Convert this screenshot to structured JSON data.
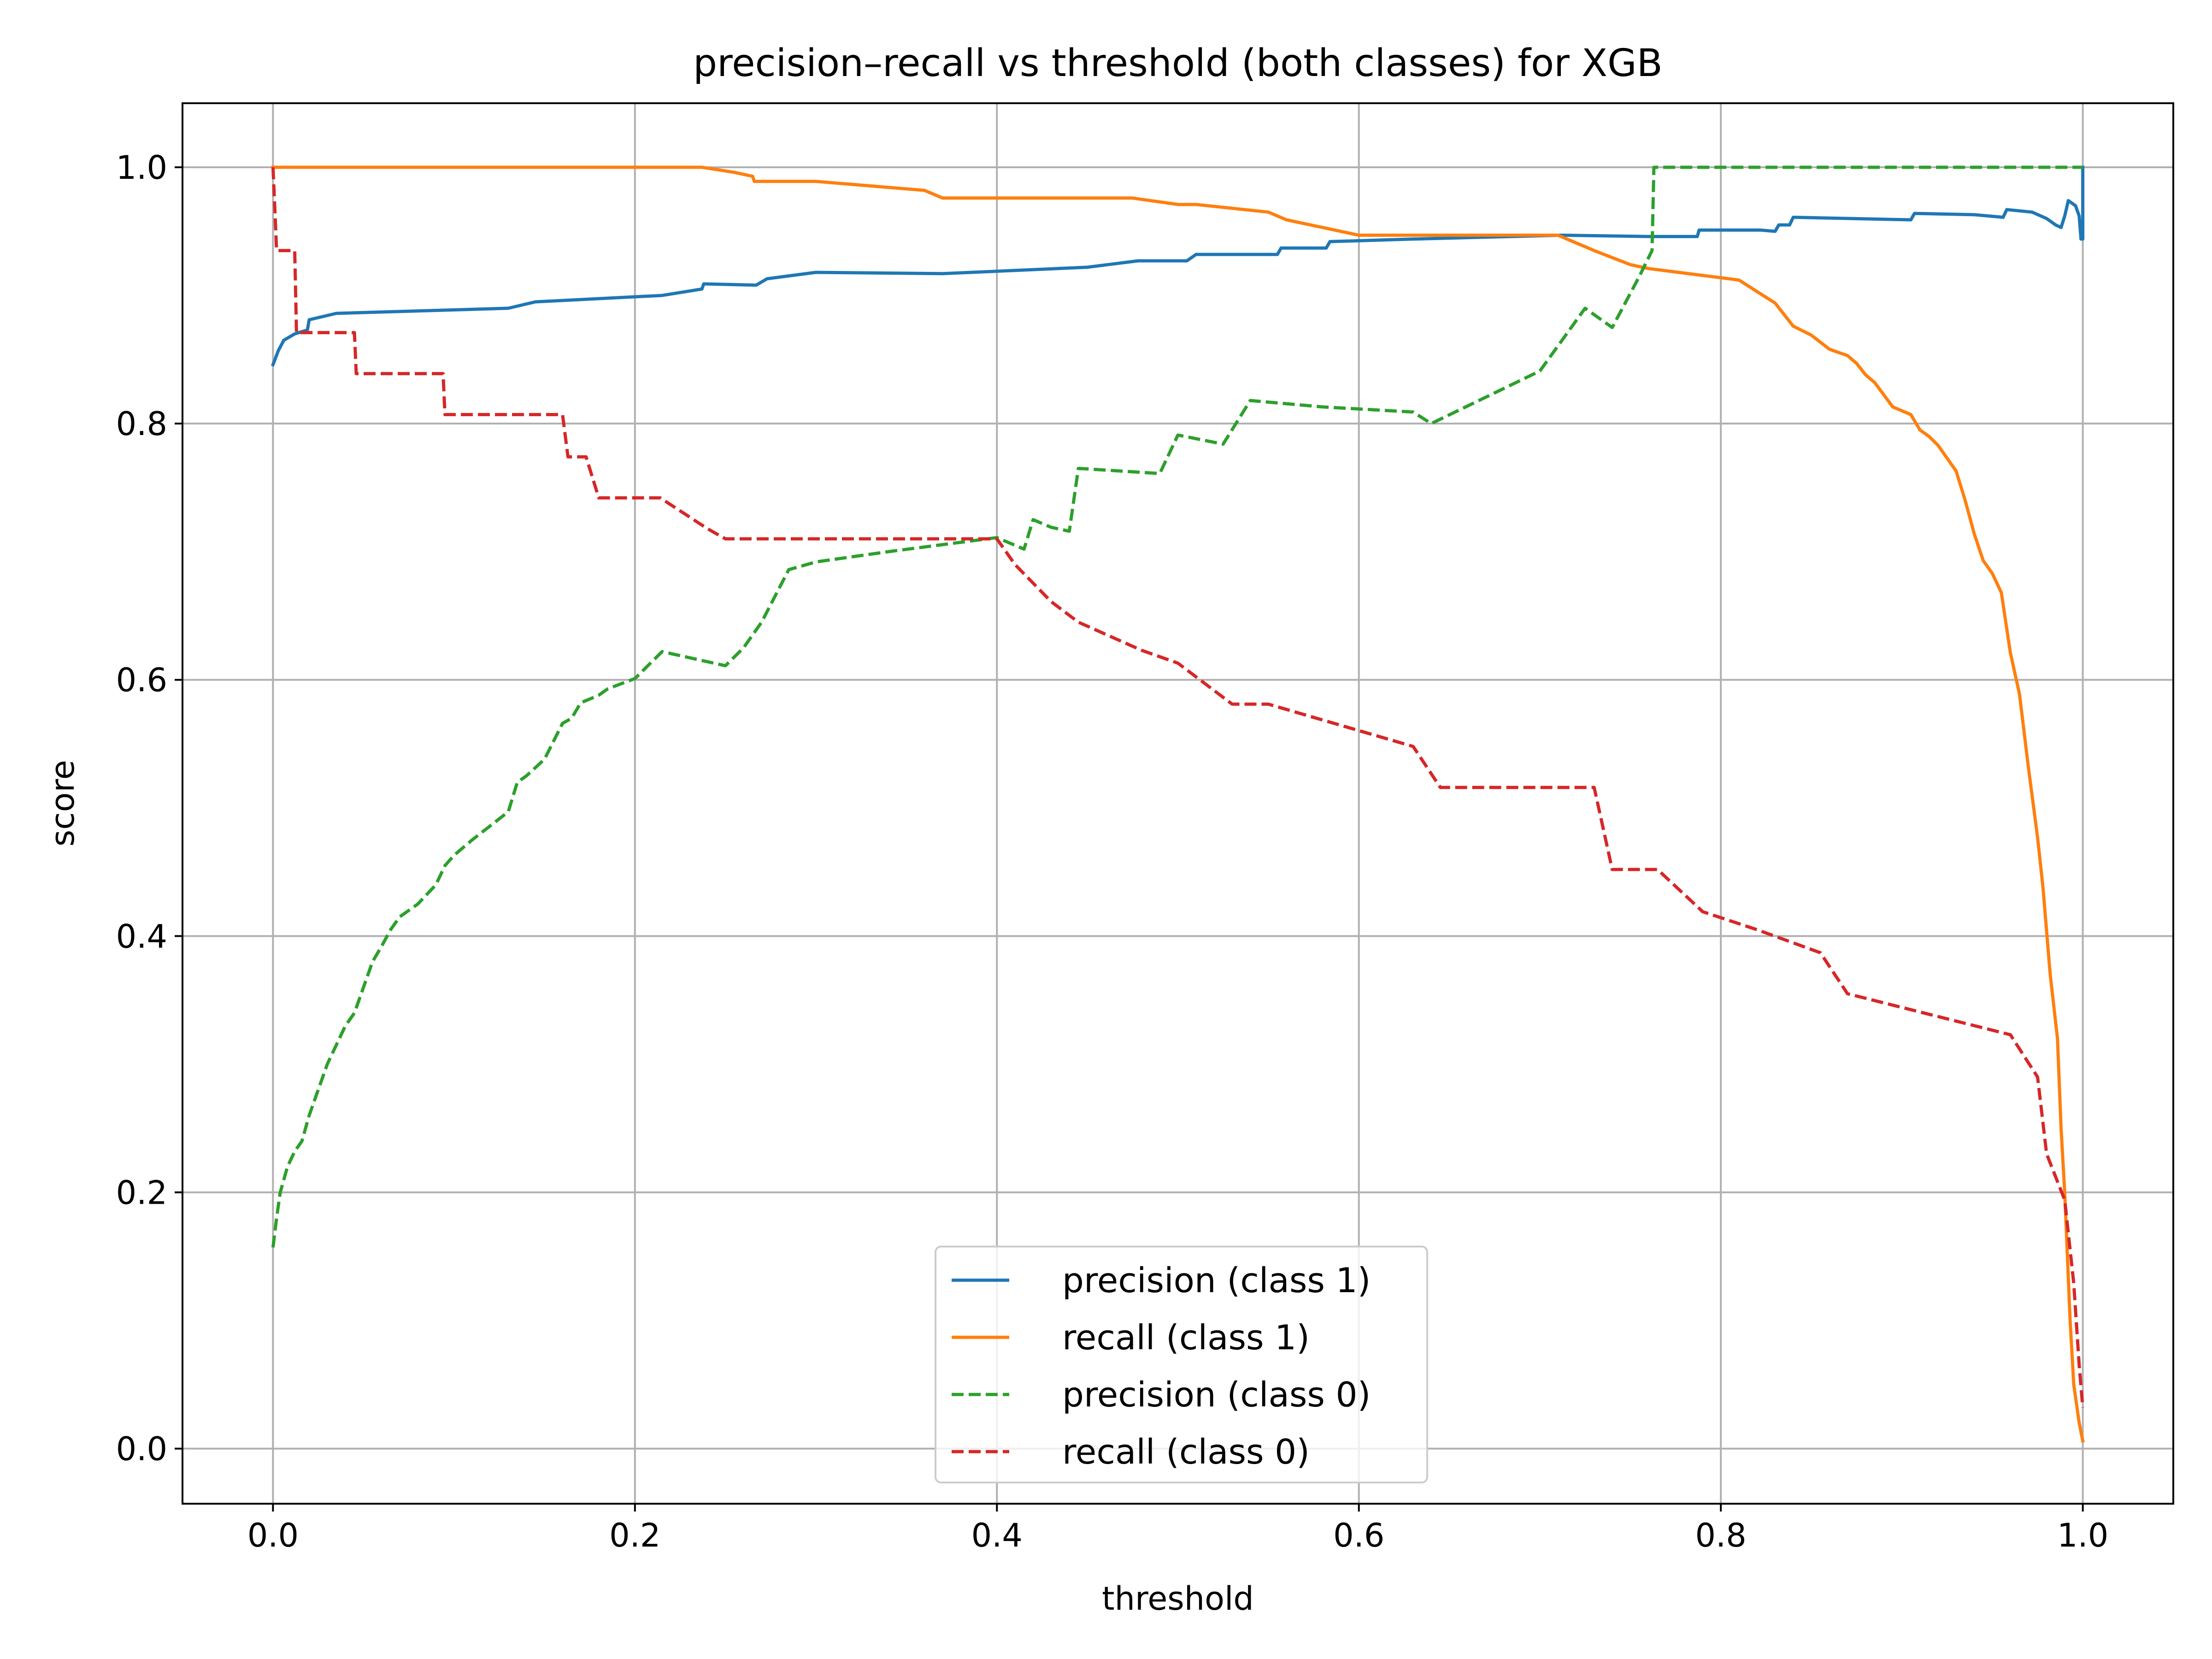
{
  "chart_data": {
    "type": "line",
    "title": "precision–recall vs threshold (both classes) for XGB",
    "xlabel": "threshold",
    "ylabel": "score",
    "xlim": [
      -0.05,
      1.05
    ],
    "ylim": [
      -0.043,
      1.05
    ],
    "xticks": [
      0.0,
      0.2,
      0.4,
      0.6,
      0.8,
      1.0
    ],
    "xtick_labels": [
      "0.0",
      "0.2",
      "0.4",
      "0.6",
      "0.8",
      "1.0"
    ],
    "yticks": [
      0.0,
      0.2,
      0.4,
      0.6,
      0.8,
      1.0
    ],
    "ytick_labels": [
      "0.0",
      "0.2",
      "0.4",
      "0.6",
      "0.8",
      "1.0"
    ],
    "grid": true,
    "legend_position": "lower center",
    "series": [
      {
        "name": "precision (class 1)",
        "color": "#1f77b4",
        "style": "solid",
        "points": [
          [
            0.0,
            0.846
          ],
          [
            0.003,
            0.857
          ],
          [
            0.006,
            0.865
          ],
          [
            0.012,
            0.87
          ],
          [
            0.019,
            0.873
          ],
          [
            0.02,
            0.881
          ],
          [
            0.035,
            0.886
          ],
          [
            0.13,
            0.89
          ],
          [
            0.145,
            0.895
          ],
          [
            0.215,
            0.9
          ],
          [
            0.237,
            0.905
          ],
          [
            0.238,
            0.909
          ],
          [
            0.267,
            0.908
          ],
          [
            0.273,
            0.913
          ],
          [
            0.3,
            0.918
          ],
          [
            0.37,
            0.917
          ],
          [
            0.45,
            0.922
          ],
          [
            0.478,
            0.927
          ],
          [
            0.505,
            0.927
          ],
          [
            0.51,
            0.932
          ],
          [
            0.555,
            0.932
          ],
          [
            0.557,
            0.937
          ],
          [
            0.582,
            0.937
          ],
          [
            0.584,
            0.942
          ],
          [
            0.63,
            0.944
          ],
          [
            0.712,
            0.947
          ],
          [
            0.76,
            0.946
          ],
          [
            0.787,
            0.946
          ],
          [
            0.788,
            0.951
          ],
          [
            0.822,
            0.951
          ],
          [
            0.83,
            0.95
          ],
          [
            0.832,
            0.955
          ],
          [
            0.838,
            0.955
          ],
          [
            0.84,
            0.961
          ],
          [
            0.905,
            0.959
          ],
          [
            0.907,
            0.964
          ],
          [
            0.94,
            0.963
          ],
          [
            0.956,
            0.961
          ],
          [
            0.958,
            0.967
          ],
          [
            0.972,
            0.965
          ],
          [
            0.98,
            0.96
          ],
          [
            0.985,
            0.955
          ],
          [
            0.988,
            0.953
          ],
          [
            0.99,
            0.962
          ],
          [
            0.992,
            0.974
          ],
          [
            0.996,
            0.97
          ],
          [
            0.998,
            0.962
          ],
          [
            0.999,
            0.944
          ],
          [
            1.0,
            0.944
          ],
          [
            1.0,
            1.0
          ]
        ]
      },
      {
        "name": "recall (class 1)",
        "color": "#ff7f0e",
        "style": "solid",
        "points": [
          [
            0.0,
            1.0
          ],
          [
            0.237,
            1.0
          ],
          [
            0.255,
            0.996
          ],
          [
            0.265,
            0.993
          ],
          [
            0.266,
            0.989
          ],
          [
            0.3,
            0.989
          ],
          [
            0.36,
            0.982
          ],
          [
            0.37,
            0.976
          ],
          [
            0.475,
            0.976
          ],
          [
            0.5,
            0.971
          ],
          [
            0.51,
            0.971
          ],
          [
            0.55,
            0.965
          ],
          [
            0.56,
            0.959
          ],
          [
            0.58,
            0.953
          ],
          [
            0.6,
            0.947
          ],
          [
            0.71,
            0.947
          ],
          [
            0.73,
            0.935
          ],
          [
            0.75,
            0.924
          ],
          [
            0.76,
            0.921
          ],
          [
            0.81,
            0.912
          ],
          [
            0.82,
            0.903
          ],
          [
            0.83,
            0.894
          ],
          [
            0.84,
            0.876
          ],
          [
            0.85,
            0.869
          ],
          [
            0.86,
            0.858
          ],
          [
            0.87,
            0.853
          ],
          [
            0.875,
            0.847
          ],
          [
            0.88,
            0.838
          ],
          [
            0.885,
            0.832
          ],
          [
            0.895,
            0.813
          ],
          [
            0.905,
            0.807
          ],
          [
            0.91,
            0.795
          ],
          [
            0.915,
            0.79
          ],
          [
            0.92,
            0.783
          ],
          [
            0.93,
            0.763
          ],
          [
            0.935,
            0.74
          ],
          [
            0.94,
            0.714
          ],
          [
            0.945,
            0.693
          ],
          [
            0.95,
            0.683
          ],
          [
            0.955,
            0.668
          ],
          [
            0.96,
            0.621
          ],
          [
            0.965,
            0.589
          ],
          [
            0.97,
            0.531
          ],
          [
            0.975,
            0.477
          ],
          [
            0.978,
            0.438
          ],
          [
            0.982,
            0.37
          ],
          [
            0.986,
            0.32
          ],
          [
            0.988,
            0.25
          ],
          [
            0.99,
            0.2
          ],
          [
            0.993,
            0.1
          ],
          [
            0.995,
            0.05
          ],
          [
            0.998,
            0.02
          ],
          [
            1.0,
            0.006
          ]
        ]
      },
      {
        "name": "precision (class 0)",
        "color": "#2ca02c",
        "style": "dashed",
        "points": [
          [
            0.0,
            0.157
          ],
          [
            0.002,
            0.18
          ],
          [
            0.004,
            0.2
          ],
          [
            0.008,
            0.22
          ],
          [
            0.012,
            0.232
          ],
          [
            0.016,
            0.24
          ],
          [
            0.02,
            0.26
          ],
          [
            0.025,
            0.28
          ],
          [
            0.03,
            0.3
          ],
          [
            0.035,
            0.315
          ],
          [
            0.04,
            0.33
          ],
          [
            0.045,
            0.34
          ],
          [
            0.05,
            0.36
          ],
          [
            0.055,
            0.38
          ],
          [
            0.06,
            0.392
          ],
          [
            0.065,
            0.405
          ],
          [
            0.07,
            0.415
          ],
          [
            0.08,
            0.425
          ],
          [
            0.09,
            0.44
          ],
          [
            0.095,
            0.455
          ],
          [
            0.1,
            0.463
          ],
          [
            0.11,
            0.475
          ],
          [
            0.12,
            0.486
          ],
          [
            0.13,
            0.497
          ],
          [
            0.135,
            0.52
          ],
          [
            0.14,
            0.525
          ],
          [
            0.15,
            0.538
          ],
          [
            0.16,
            0.566
          ],
          [
            0.165,
            0.57
          ],
          [
            0.17,
            0.582
          ],
          [
            0.18,
            0.588
          ],
          [
            0.185,
            0.593
          ],
          [
            0.2,
            0.601
          ],
          [
            0.215,
            0.622
          ],
          [
            0.25,
            0.611
          ],
          [
            0.26,
            0.625
          ],
          [
            0.27,
            0.645
          ],
          [
            0.285,
            0.686
          ],
          [
            0.3,
            0.692
          ],
          [
            0.34,
            0.7
          ],
          [
            0.4,
            0.711
          ],
          [
            0.415,
            0.702
          ],
          [
            0.42,
            0.725
          ],
          [
            0.43,
            0.719
          ],
          [
            0.44,
            0.716
          ],
          [
            0.445,
            0.765
          ],
          [
            0.49,
            0.761
          ],
          [
            0.5,
            0.791
          ],
          [
            0.525,
            0.784
          ],
          [
            0.54,
            0.818
          ],
          [
            0.58,
            0.813
          ],
          [
            0.63,
            0.809
          ],
          [
            0.64,
            0.8
          ],
          [
            0.7,
            0.841
          ],
          [
            0.725,
            0.89
          ],
          [
            0.74,
            0.875
          ],
          [
            0.755,
            0.915
          ],
          [
            0.762,
            0.935
          ],
          [
            0.763,
            1.0
          ],
          [
            1.0,
            1.0
          ]
        ]
      },
      {
        "name": "recall (class 0)",
        "color": "#d62728",
        "style": "dashed",
        "points": [
          [
            0.0,
            1.0
          ],
          [
            0.001,
            0.968
          ],
          [
            0.002,
            0.935
          ],
          [
            0.012,
            0.935
          ],
          [
            0.013,
            0.871
          ],
          [
            0.045,
            0.871
          ],
          [
            0.046,
            0.839
          ],
          [
            0.094,
            0.839
          ],
          [
            0.095,
            0.807
          ],
          [
            0.16,
            0.807
          ],
          [
            0.163,
            0.774
          ],
          [
            0.173,
            0.774
          ],
          [
            0.18,
            0.742
          ],
          [
            0.214,
            0.742
          ],
          [
            0.24,
            0.718
          ],
          [
            0.25,
            0.71
          ],
          [
            0.4,
            0.71
          ],
          [
            0.41,
            0.69
          ],
          [
            0.43,
            0.661
          ],
          [
            0.445,
            0.645
          ],
          [
            0.48,
            0.623
          ],
          [
            0.5,
            0.613
          ],
          [
            0.53,
            0.581
          ],
          [
            0.55,
            0.581
          ],
          [
            0.63,
            0.548
          ],
          [
            0.645,
            0.516
          ],
          [
            0.73,
            0.516
          ],
          [
            0.735,
            0.484
          ],
          [
            0.74,
            0.452
          ],
          [
            0.765,
            0.452
          ],
          [
            0.79,
            0.419
          ],
          [
            0.82,
            0.405
          ],
          [
            0.855,
            0.387
          ],
          [
            0.87,
            0.355
          ],
          [
            0.96,
            0.323
          ],
          [
            0.975,
            0.29
          ],
          [
            0.98,
            0.23
          ],
          [
            0.99,
            0.194
          ],
          [
            0.995,
            0.129
          ],
          [
            0.998,
            0.065
          ],
          [
            1.0,
            0.032
          ]
        ]
      }
    ]
  }
}
